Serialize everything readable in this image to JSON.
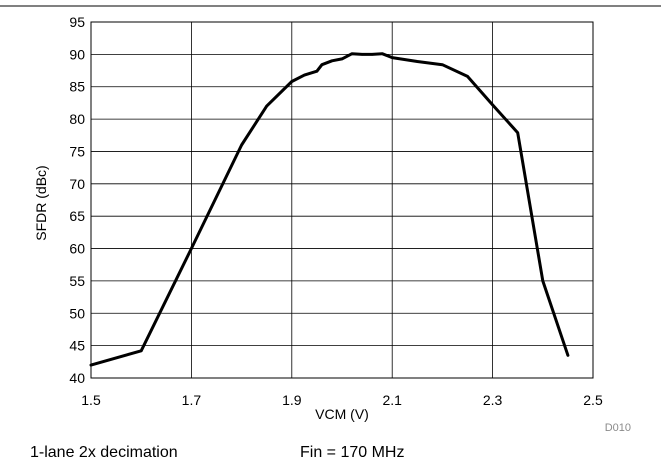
{
  "chart_data": {
    "type": "line",
    "xlabel": "VCM (V)",
    "ylabel": "SFDR (dBc)",
    "xlim": [
      1.5,
      2.5
    ],
    "ylim": [
      40,
      95
    ],
    "xticks": [
      "1.5",
      "1.7",
      "1.9",
      "2.1",
      "2.3",
      "2.5"
    ],
    "yticks": [
      "40",
      "45",
      "50",
      "55",
      "60",
      "65",
      "70",
      "75",
      "80",
      "85",
      "90",
      "95"
    ],
    "grid": true,
    "series": [
      {
        "x": [
          1.5,
          1.6,
          1.7,
          1.8,
          1.85,
          1.9,
          1.925,
          1.95,
          1.96,
          1.98,
          2.0,
          2.02,
          2.04,
          2.06,
          2.08,
          2.1,
          2.15,
          2.2,
          2.25,
          2.3,
          2.35,
          2.4,
          2.45
        ],
        "y": [
          42,
          44.2,
          60,
          76,
          82,
          85.8,
          86.8,
          87.4,
          88.4,
          89,
          89.3,
          90.1,
          90,
          90,
          90.1,
          89.5,
          88.9,
          88.4,
          86.6,
          82.2,
          77.9,
          55,
          43.5
        ],
        "color": "#000000"
      }
    ]
  },
  "figure_id": "D010",
  "captions": {
    "mode": "1-lane 2x decimation",
    "fin": "Fin = 170 MHz"
  }
}
